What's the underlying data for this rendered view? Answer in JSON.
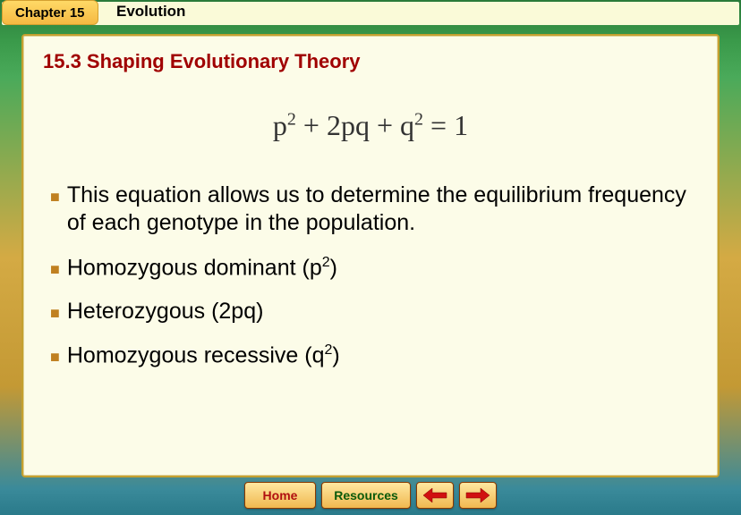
{
  "header": {
    "chapter_tab": "Chapter 15",
    "chapter_title": "Evolution"
  },
  "section": {
    "title": "15.3 Shaping Evolutionary Theory"
  },
  "equation": {
    "html": "p<sup>2</sup> + 2pq + q<sup>2</sup> = 1"
  },
  "bullets": [
    {
      "html": "This equation allows us to determine the equilibrium frequency of each genotype in the population."
    },
    {
      "html": "Homozygous dominant (p<sup>2</sup>)"
    },
    {
      "html": "Heterozygous (2pq)"
    },
    {
      "html": "Homozygous recessive (q<sup>2</sup>)"
    }
  ],
  "nav": {
    "home": "Home",
    "resources": "Resources"
  },
  "colors": {
    "section_title": "#a00000",
    "bullet_marker": "#c08020",
    "panel_bg": "#fcfce8",
    "panel_border": "#c4a030"
  }
}
